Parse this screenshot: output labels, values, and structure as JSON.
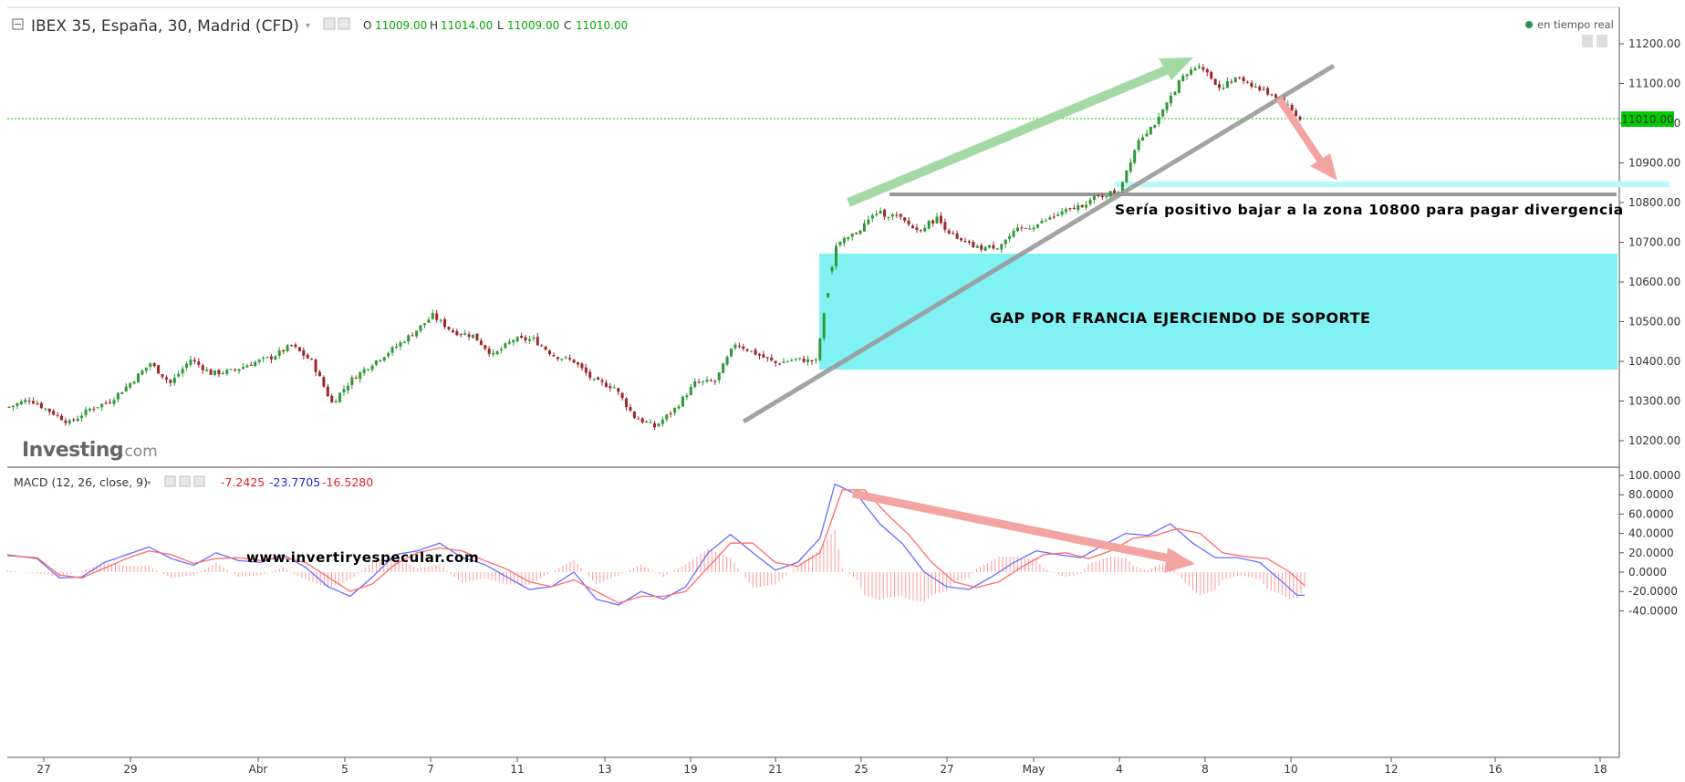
{
  "header": {
    "symbol": "IBEX 35, España, 30, Madrid (CFD)",
    "o_label": "O",
    "o_value": "11009.00",
    "h_label": "H",
    "h_value": "11014.00",
    "l_label": "L",
    "l_value": "11009.00",
    "c_label": "C",
    "c_value": "11010.00",
    "realtime": "en tiempo real"
  },
  "macd_header": {
    "label": "MACD (12, 26, close, 9)",
    "v1": "-7.2425",
    "v2": "-23.7705",
    "v3": "-16.5280"
  },
  "colors": {
    "up": "#2e9a34",
    "down": "#a0262c",
    "price_line": "#00dd00",
    "gap": "#80f2f4",
    "macd_line": "#6a6aff",
    "signal_line": "#ff6a6a",
    "hist": "#ff9a9a",
    "green_arrow": "#a3d9a5",
    "red_arrow": "#f4a3a3",
    "trend": "#9a9a9a",
    "cyan_band": "#b8fafa"
  },
  "annotations": {
    "gap_label": "GAP POR FRANCIA EJERCIENDO DE SOPORTE",
    "note": "Sería positivo bajar a la zona 10800 para pagar divergencia",
    "site": "www.invertiryespecular.com"
  },
  "logo": {
    "main": "Investing",
    "suffix": ".com"
  },
  "current_price_label": "11010.00",
  "chart_data": [
    {
      "type": "candlestick",
      "title": "IBEX 35, España, 30, Madrid (CFD)",
      "x_ticks": [
        "27",
        "29",
        "Abr",
        "5",
        "7",
        "11",
        "13",
        "19",
        "21",
        "25",
        "27",
        "May",
        "4",
        "8",
        "10",
        "12",
        "16",
        "18"
      ],
      "y_ticks": [
        "11200.00",
        "11100.00",
        "11000.00",
        "10900.00",
        "10800.00",
        "10700.00",
        "10600.00",
        "10500.00",
        "10400.00",
        "10300.00",
        "10200.00"
      ],
      "ylim": [
        10150,
        11270
      ],
      "close_path": [
        [
          0,
          10285
        ],
        [
          5,
          10305
        ],
        [
          10,
          10275
        ],
        [
          15,
          10245
        ],
        [
          20,
          10280
        ],
        [
          25,
          10300
        ],
        [
          30,
          10345
        ],
        [
          35,
          10395
        ],
        [
          40,
          10345
        ],
        [
          45,
          10405
        ],
        [
          50,
          10370
        ],
        [
          55,
          10375
        ],
        [
          60,
          10395
        ],
        [
          65,
          10410
        ],
        [
          70,
          10440
        ],
        [
          75,
          10400
        ],
        [
          80,
          10295
        ],
        [
          85,
          10355
        ],
        [
          90,
          10395
        ],
        [
          95,
          10430
        ],
        [
          100,
          10470
        ],
        [
          105,
          10515
        ],
        [
          110,
          10475
        ],
        [
          115,
          10465
        ],
        [
          120,
          10415
        ],
        [
          125,
          10455
        ],
        [
          130,
          10455
        ],
        [
          135,
          10415
        ],
        [
          140,
          10400
        ],
        [
          145,
          10350
        ],
        [
          150,
          10335
        ],
        [
          155,
          10260
        ],
        [
          160,
          10235
        ],
        [
          165,
          10280
        ],
        [
          170,
          10345
        ],
        [
          175,
          10350
        ],
        [
          180,
          10445
        ],
        [
          185,
          10420
        ],
        [
          190,
          10395
        ],
        [
          195,
          10405
        ],
        [
          200,
          10400
        ],
        [
          205,
          10690
        ],
        [
          210,
          10725
        ],
        [
          215,
          10775
        ],
        [
          220,
          10765
        ],
        [
          225,
          10730
        ],
        [
          230,
          10760
        ],
        [
          235,
          10705
        ],
        [
          240,
          10685
        ],
        [
          245,
          10690
        ],
        [
          250,
          10730
        ],
        [
          255,
          10745
        ],
        [
          260,
          10770
        ],
        [
          265,
          10790
        ],
        [
          270,
          10815
        ],
        [
          275,
          10830
        ],
        [
          280,
          10960
        ],
        [
          285,
          11010
        ],
        [
          290,
          11105
        ],
        [
          295,
          11150
        ],
        [
          300,
          11090
        ],
        [
          305,
          11115
        ],
        [
          310,
          11085
        ],
        [
          315,
          11065
        ],
        [
          320,
          11010
        ]
      ],
      "price_line": 11010,
      "gap_zone": [
        10380,
        10670
      ],
      "resistance_level": 10815,
      "target_zone_level": 10845
    },
    {
      "type": "line",
      "title": "MACD (12, 26, close, 9)",
      "y_ticks": [
        "100.0000",
        "80.0000",
        "60.0000",
        "40.0000",
        "20.0000",
        "0.0000",
        "-20.0000",
        "-40.0000"
      ],
      "ylim": [
        -42,
        102
      ],
      "series": [
        {
          "name": "MACD",
          "values": [
            [
              0,
              18
            ],
            [
              8,
              14
            ],
            [
              14,
              -6
            ],
            [
              20,
              -5
            ],
            [
              26,
              10
            ],
            [
              32,
              18
            ],
            [
              38,
              26
            ],
            [
              44,
              14
            ],
            [
              50,
              7
            ],
            [
              56,
              20
            ],
            [
              62,
              12
            ],
            [
              68,
              10
            ],
            [
              74,
              18
            ],
            [
              80,
              5
            ],
            [
              86,
              -15
            ],
            [
              92,
              -25
            ],
            [
              98,
              -5
            ],
            [
              104,
              18
            ],
            [
              110,
              22
            ],
            [
              116,
              30
            ],
            [
              122,
              15
            ],
            [
              128,
              8
            ],
            [
              134,
              -5
            ],
            [
              140,
              -18
            ],
            [
              146,
              -15
            ],
            [
              152,
              0
            ],
            [
              158,
              -28
            ],
            [
              164,
              -34
            ],
            [
              170,
              -20
            ],
            [
              176,
              -28
            ],
            [
              182,
              -15
            ],
            [
              188,
              20
            ],
            [
              194,
              39
            ],
            [
              200,
              20
            ],
            [
              206,
              2
            ],
            [
              212,
              10
            ],
            [
              218,
              35
            ],
            [
              222,
              91
            ],
            [
              228,
              80
            ],
            [
              234,
              50
            ],
            [
              240,
              30
            ],
            [
              246,
              0
            ],
            [
              252,
              -15
            ],
            [
              258,
              -18
            ],
            [
              264,
              -5
            ],
            [
              270,
              10
            ],
            [
              276,
              22
            ],
            [
              282,
              18
            ],
            [
              288,
              15
            ],
            [
              294,
              28
            ],
            [
              300,
              40
            ],
            [
              306,
              38
            ],
            [
              312,
              50
            ],
            [
              318,
              30
            ],
            [
              324,
              15
            ],
            [
              330,
              15
            ],
            [
              336,
              10
            ],
            [
              342,
              -10
            ],
            [
              346,
              -24
            ]
          ]
        },
        {
          "name": "Signal",
          "values": [
            [
              0,
              17
            ],
            [
              8,
              15
            ],
            [
              14,
              -3
            ],
            [
              20,
              -6
            ],
            [
              26,
              4
            ],
            [
              32,
              14
            ],
            [
              38,
              22
            ],
            [
              44,
              18
            ],
            [
              50,
              9
            ],
            [
              56,
              14
            ],
            [
              62,
              15
            ],
            [
              68,
              12
            ],
            [
              74,
              15
            ],
            [
              80,
              10
            ],
            [
              86,
              -5
            ],
            [
              92,
              -20
            ],
            [
              98,
              -12
            ],
            [
              104,
              8
            ],
            [
              110,
              20
            ],
            [
              116,
              25
            ],
            [
              122,
              22
            ],
            [
              128,
              12
            ],
            [
              134,
              3
            ],
            [
              140,
              -10
            ],
            [
              146,
              -15
            ],
            [
              152,
              -8
            ],
            [
              158,
              -20
            ],
            [
              164,
              -32
            ],
            [
              170,
              -25
            ],
            [
              176,
              -25
            ],
            [
              182,
              -20
            ],
            [
              188,
              5
            ],
            [
              194,
              30
            ],
            [
              200,
              30
            ],
            [
              206,
              10
            ],
            [
              212,
              6
            ],
            [
              218,
              20
            ],
            [
              224,
              85
            ],
            [
              230,
              85
            ],
            [
              236,
              60
            ],
            [
              242,
              38
            ],
            [
              248,
              10
            ],
            [
              254,
              -10
            ],
            [
              260,
              -16
            ],
            [
              266,
              -10
            ],
            [
              272,
              5
            ],
            [
              278,
              18
            ],
            [
              284,
              20
            ],
            [
              290,
              14
            ],
            [
              296,
              22
            ],
            [
              302,
              35
            ],
            [
              308,
              38
            ],
            [
              314,
              45
            ],
            [
              320,
              40
            ],
            [
              326,
              20
            ],
            [
              332,
              16
            ],
            [
              338,
              14
            ],
            [
              344,
              0
            ],
            [
              348,
              -14
            ]
          ]
        }
      ],
      "histogram_note": "MACD histogram bars (MACD minus signal)"
    }
  ]
}
